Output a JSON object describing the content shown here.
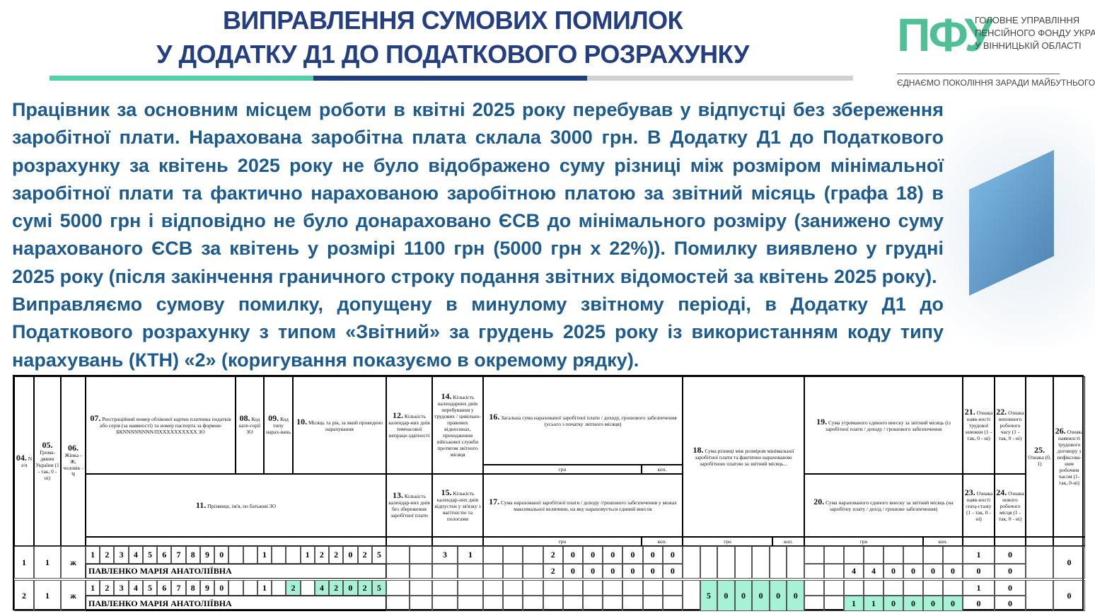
{
  "header": {
    "title_line1": "ВИПРАВЛЕННЯ СУМОВИХ ПОМИЛОК",
    "title_line2": "У ДОДАТКУ Д1 ДО ПОДАТКОВОГО РОЗРАХУНКУ"
  },
  "colors": {
    "title": "#233f82",
    "text": "#1d5b8e",
    "accent_green": "#4fbf95",
    "highlight": "#a6f2d6",
    "bar_navy": "#1f3e7a",
    "bar_gray": "#d0d0d0"
  },
  "logo": {
    "mark": "ПФУ",
    "line1": "ГОЛОВНЕ УПРАВЛІННЯ",
    "line2": "ПЕНСІЙНОГО ФОНДУ УКРАЇНИ",
    "line3": "У ВІННИЦЬКІЙ ОБЛАСТІ",
    "slogan": "ЄДНАЄМО ПОКОЛІННЯ ЗАРАДИ МАЙБУТНЬОГО"
  },
  "body": {
    "p1": "Працівник за основним місцем роботи в квітні 2025 року перебував у відпустці без збереження заробітної плати. Нарахована заробітна плата склала 3000 грн. В Додатку Д1 до Податкового розрахунку за квітень 2025 року не було відображено суму різниці між розміром мінімальної заробітної плати та фактично нарахованою заробітною платою за звітний місяць (графа 18) в сумі 5000 грн і відповідно не було донараховано ЄСВ до мінімального розміру (занижено суму нарахованого ЄСВ за квітень у розмірі 1100 грн (5000 грн х 22%)). Помилку виявлено у грудні 2025 року (після закінчення граничного строку подання звітних відомостей за квітень 2025 року).",
    "p2": "Виправляємо сумову помилку, допущену в минулому звітному періоді, в Додатку Д1 до Податкового розрахунку з типом «Звітний» за грудень 2025 року із використанням коду типу нарахувань (КТН) «2» (коригування показуємо в окремому рядку)."
  },
  "table": {
    "headers": {
      "c04": [
        "04.",
        "N з/п"
      ],
      "c05": [
        "05.",
        "Грома-дянин України (1 - так, 0 - ні)"
      ],
      "c06": [
        "06.",
        "Жінка - Ж, чоловік - Ч"
      ],
      "c07": [
        "07.",
        "Реєстраційний номер облікової картки платника податків або серія (за наявності) та номер паспорта за формою БКNNNNNNNN/ПXXXXXXXXXX ЗО"
      ],
      "c08": [
        "08.",
        "Код кате-горії ЗО"
      ],
      "c09": [
        "09.",
        "Код типу нарах-вань"
      ],
      "c10": [
        "10.",
        "Місяць та рік, за який проведено нарахування"
      ],
      "c11": [
        "11.",
        "Прізвище, ім'я, по батькові ЗО"
      ],
      "c12": [
        "12.",
        "Кількість календар-них днів тимчасової непраце-здатності"
      ],
      "c13": [
        "13.",
        "Кількість календар-них днів без збереження заробітної плати"
      ],
      "c14": [
        "14.",
        "Кількість календарних днів перебування у трудових / цивільно-правових відносинах, проходження військової служби протягом звітного місяця"
      ],
      "c15": [
        "15.",
        "Кількість календар-них днів відпустки у зв'язку з вагітністю та пологами"
      ],
      "c16": [
        "16.",
        "Загальна сума нарахованої заробітної плати / доходу, грошового забезпечення (усього з початку звітного місяця)"
      ],
      "c17": [
        "17.",
        "Сума нарахованої заробітної плати / доходу /грошового забезпечення у межах максимальної величини, на яку нараховується єдиний внесок"
      ],
      "c18": [
        "18.",
        "Сума різниці між розміром мінімальної заробітної плати та фактично нарахованою заробітною платою за звітний місяць..."
      ],
      "c19": [
        "19.",
        "Сума утриманого єдиного внеску за звітний місяць (із заробітної плати / доходу / грошового забезпечення"
      ],
      "c20": [
        "20.",
        "Сума нарахованого єдиного внеску за звітний місяць (на заробітну плату / дохід / грошове забезпечення)"
      ],
      "c21": [
        "21.",
        "Ознака наяв-ності трудової книжки (1 - так, 0 - ні)"
      ],
      "c22": [
        "22.",
        "Ознака неповного робочого часу (1 - так, 0 - ні)"
      ],
      "c23": [
        "23.",
        "Ознака наяв-ності спец-стажу (1 - так, 0 - ні)"
      ],
      "c24": [
        "24.",
        "Ознака нового робочого місця (1 - так, 0 - ні)"
      ],
      "c25": [
        "25.",
        "Ознака (0, 1)"
      ],
      "c26": [
        "26.",
        "Ознака наявності трудового договору з нефіксова-ним робочим часом (1-так, 0-ні)"
      ],
      "grn": "грн",
      "kop": "коп."
    },
    "rows": [
      {
        "n": "1",
        "citizen": "1",
        "sex": "ж",
        "name": "ПАВЛЕНКО МАРІЯ АНАТОЛІЇВНА",
        "code": [
          "1",
          "2",
          "3",
          "4",
          "5",
          "6",
          "7",
          "8",
          "9",
          "0",
          "",
          "",
          "1",
          "",
          "",
          "1",
          "2",
          "2",
          "0",
          "2",
          "5"
        ],
        "code_hl": [],
        "c12": [
          "",
          ""
        ],
        "c14": [
          "3",
          "1"
        ],
        "c16": [
          "",
          "",
          "",
          "2",
          "0",
          "0",
          "0",
          "0",
          "0",
          "0"
        ],
        "c17": [
          "",
          "",
          "",
          "2",
          "0",
          "0",
          "0",
          "0",
          "0",
          "0"
        ],
        "c18": [
          "",
          "",
          "",
          "",
          "",
          "",
          ""
        ],
        "c18_hl": false,
        "c19": [
          "",
          "",
          "",
          "",
          "",
          "",
          "",
          ""
        ],
        "c20": [
          "",
          "",
          "4",
          "4",
          "0",
          "0",
          "0",
          "0"
        ],
        "c20_hl": false,
        "c21": "1",
        "c22": "0",
        "c23": "0",
        "c24": "0",
        "c25": "",
        "c26": "0"
      },
      {
        "n": "2",
        "citizen": "1",
        "sex": "ж",
        "name": "ПАВЛЕНКО МАРІЯ АНАТОЛІЇВНА",
        "code": [
          "1",
          "2",
          "3",
          "4",
          "5",
          "6",
          "7",
          "8",
          "9",
          "0",
          "",
          "",
          "1",
          "",
          "2",
          "",
          "4",
          "2",
          "0",
          "2",
          "5"
        ],
        "code_hl": [
          14,
          16,
          17,
          18,
          19,
          20
        ],
        "c12": [
          "",
          ""
        ],
        "c14": [
          "",
          ""
        ],
        "c16": [
          "",
          "",
          "",
          "",
          "",
          "",
          "",
          "",
          "",
          ""
        ],
        "c17": [
          "",
          "",
          "",
          "",
          "",
          "",
          "",
          "",
          "",
          ""
        ],
        "c18": [
          "",
          "5",
          "0",
          "0",
          "0",
          "0",
          "0"
        ],
        "c18_hl": true,
        "c19": [
          "",
          "",
          "",
          "",
          "",
          "",
          "",
          ""
        ],
        "c20": [
          "",
          "",
          "1",
          "1",
          "0",
          "0",
          "0",
          "0"
        ],
        "c20_hl": true,
        "c21": "1",
        "c22": "0",
        "c23": "0",
        "c24": "0",
        "c25": "",
        "c26": "0"
      }
    ]
  }
}
